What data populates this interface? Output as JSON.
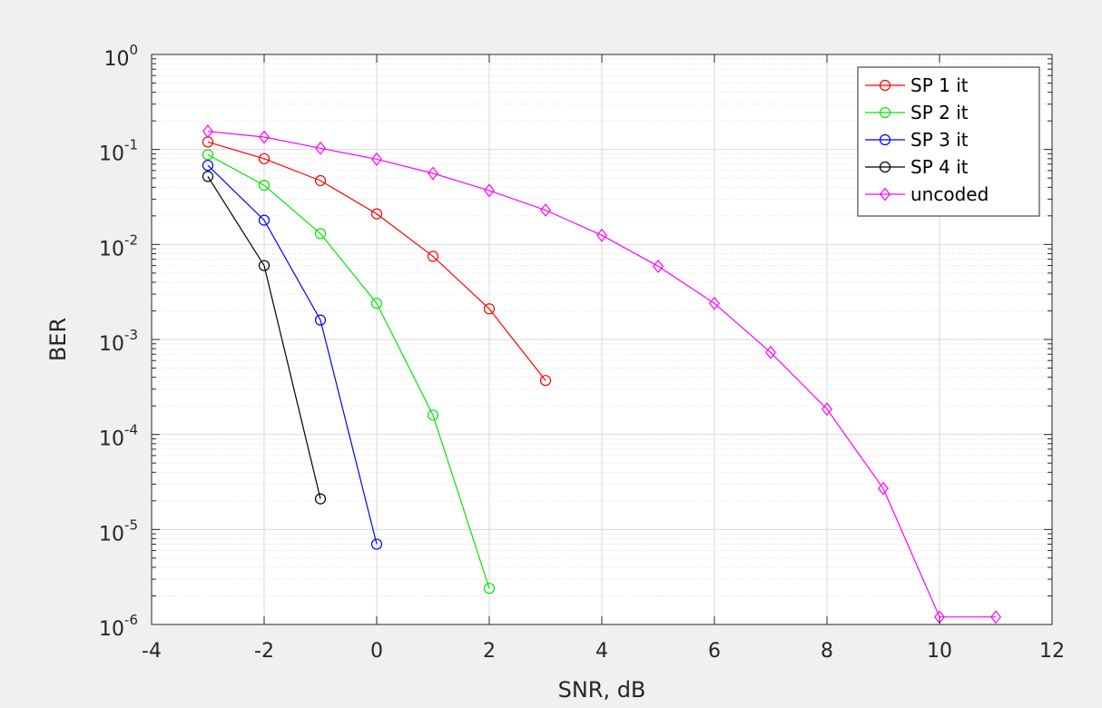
{
  "chart_data": {
    "type": "line",
    "xlabel": "SNR, dB",
    "ylabel": "BER",
    "xlim": [
      -4,
      12
    ],
    "ylim": [
      1e-06,
      1
    ],
    "yscale": "log",
    "xticks": [
      "-4",
      "-2",
      "0",
      "2",
      "4",
      "6",
      "8",
      "10",
      "12"
    ],
    "yticks": [
      {
        "base": "10",
        "exp": "0"
      },
      {
        "base": "10",
        "exp": "-1"
      },
      {
        "base": "10",
        "exp": "-2"
      },
      {
        "base": "10",
        "exp": "-3"
      },
      {
        "base": "10",
        "exp": "-4"
      },
      {
        "base": "10",
        "exp": "-5"
      },
      {
        "base": "10",
        "exp": "-6"
      }
    ],
    "grid": true,
    "minor_grid": true,
    "legend_position": "top-right",
    "series": [
      {
        "name": "SP 1 it",
        "color": "#ff0000",
        "marker": "circle",
        "x": [
          -3,
          -2,
          -1,
          0,
          1,
          2,
          3
        ],
        "y": [
          0.12,
          0.08,
          0.047,
          0.021,
          0.0075,
          0.0021,
          0.00037
        ]
      },
      {
        "name": "SP 2 it",
        "color": "#00e600",
        "marker": "circle",
        "x": [
          -3,
          -2,
          -1,
          0,
          1,
          2
        ],
        "y": [
          0.088,
          0.042,
          0.013,
          0.0024,
          0.00016,
          2.4e-06
        ]
      },
      {
        "name": "SP 3 it",
        "color": "#0000ff",
        "marker": "circle",
        "x": [
          -3,
          -2,
          -1,
          0
        ],
        "y": [
          0.068,
          0.018,
          0.0016,
          7e-06
        ]
      },
      {
        "name": "SP 4 it",
        "color": "#000000",
        "marker": "circle",
        "x": [
          -3,
          -2,
          -1
        ],
        "y": [
          0.052,
          0.006,
          2.1e-05
        ]
      },
      {
        "name": "uncoded",
        "color": "#ff00ff",
        "marker": "diamond",
        "x": [
          -3,
          -2,
          -1,
          0,
          1,
          2,
          3,
          4,
          5,
          6,
          7,
          8,
          9,
          10,
          11
        ],
        "y": [
          0.155,
          0.135,
          0.103,
          0.079,
          0.056,
          0.037,
          0.023,
          0.0125,
          0.0059,
          0.0024,
          0.00073,
          0.000185,
          2.7e-05,
          1.2e-06,
          1.2e-06
        ]
      }
    ]
  }
}
